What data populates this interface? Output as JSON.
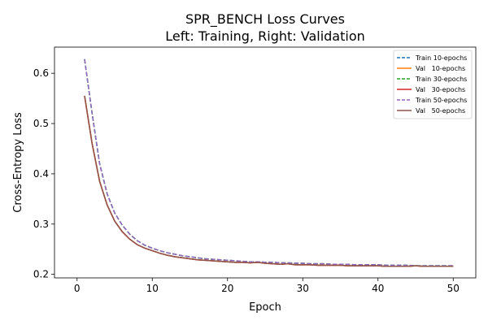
{
  "chart_data": {
    "type": "line",
    "title": "SPR_BENCH Loss Curves",
    "subtitle": "Left: Training, Right: Validation",
    "xlabel": "Epoch",
    "ylabel": "Cross-Entropy Loss",
    "xlim": [
      -3,
      53
    ],
    "ylim": [
      0.193,
      0.652
    ],
    "xticks": [
      0,
      10,
      20,
      30,
      40,
      50
    ],
    "yticks": [
      0.2,
      0.3,
      0.4,
      0.5,
      0.6
    ],
    "grid": false,
    "legend_position": "top-right",
    "x": [
      1,
      2,
      3,
      4,
      5,
      6,
      7,
      8,
      9,
      10,
      11,
      12,
      13,
      14,
      15,
      16,
      17,
      18,
      19,
      20,
      21,
      22,
      23,
      24,
      25,
      26,
      27,
      28,
      29,
      30,
      31,
      32,
      33,
      34,
      35,
      36,
      37,
      38,
      39,
      40,
      41,
      42,
      43,
      44,
      45,
      46,
      47,
      48,
      49,
      50
    ],
    "series": [
      {
        "name": "Train 10-epochs",
        "color": "#1f77b4",
        "dash": true,
        "values": [
          0.628,
          0.52,
          0.42,
          0.36,
          0.322,
          0.298,
          0.28,
          0.267,
          0.258,
          0.252,
          0.247,
          0.243,
          0.24,
          0.237,
          0.235,
          0.233,
          0.231,
          0.23,
          0.229,
          0.228,
          0.227,
          0.226,
          0.225,
          0.225,
          0.224,
          0.224,
          0.223,
          0.223,
          0.222,
          0.222,
          0.221,
          0.221,
          0.221,
          0.22,
          0.22,
          0.22,
          0.219,
          0.219,
          0.219,
          0.219,
          0.218,
          0.218,
          0.218,
          0.218,
          0.217,
          0.217,
          0.217,
          0.217,
          0.217,
          0.217
        ]
      },
      {
        "name": "Val   10-epochs",
        "color": "#ff7f0e",
        "dash": false,
        "values": [
          0.555,
          0.46,
          0.385,
          0.338,
          0.306,
          0.285,
          0.27,
          0.259,
          0.252,
          0.247,
          0.242,
          0.238,
          0.235,
          0.233,
          0.231,
          0.229,
          0.228,
          0.227,
          0.226,
          0.225,
          0.224,
          0.224,
          0.223,
          0.224,
          0.222,
          0.221,
          0.22,
          0.221,
          0.219,
          0.219,
          0.219,
          0.218,
          0.218,
          0.218,
          0.218,
          0.217,
          0.217,
          0.217,
          0.217,
          0.217,
          0.216,
          0.216,
          0.216,
          0.216,
          0.217,
          0.216,
          0.216,
          0.216,
          0.216,
          0.216
        ]
      },
      {
        "name": "Train 30-epochs",
        "color": "#2ca02c",
        "dash": true,
        "values": [
          0.628,
          0.52,
          0.42,
          0.36,
          0.322,
          0.298,
          0.28,
          0.267,
          0.258,
          0.252,
          0.247,
          0.243,
          0.24,
          0.237,
          0.235,
          0.233,
          0.231,
          0.23,
          0.229,
          0.228,
          0.227,
          0.226,
          0.225,
          0.225,
          0.224,
          0.224,
          0.223,
          0.223,
          0.222,
          0.222,
          0.221,
          0.221,
          0.221,
          0.22,
          0.22,
          0.22,
          0.219,
          0.219,
          0.219,
          0.219,
          0.218,
          0.218,
          0.218,
          0.218,
          0.217,
          0.217,
          0.217,
          0.217,
          0.217,
          0.217
        ]
      },
      {
        "name": "Val   30-epochs",
        "color": "#d62728",
        "dash": false,
        "values": [
          0.555,
          0.46,
          0.385,
          0.338,
          0.306,
          0.285,
          0.27,
          0.259,
          0.252,
          0.247,
          0.242,
          0.238,
          0.235,
          0.233,
          0.231,
          0.229,
          0.228,
          0.227,
          0.226,
          0.225,
          0.224,
          0.224,
          0.223,
          0.224,
          0.222,
          0.221,
          0.22,
          0.221,
          0.219,
          0.219,
          0.219,
          0.218,
          0.218,
          0.218,
          0.218,
          0.217,
          0.217,
          0.217,
          0.217,
          0.217,
          0.216,
          0.216,
          0.216,
          0.216,
          0.217,
          0.216,
          0.216,
          0.216,
          0.216,
          0.216
        ]
      },
      {
        "name": "Train 50-epochs",
        "color": "#9467bd",
        "dash": true,
        "values": [
          0.628,
          0.52,
          0.42,
          0.36,
          0.322,
          0.298,
          0.28,
          0.267,
          0.258,
          0.252,
          0.247,
          0.243,
          0.24,
          0.237,
          0.235,
          0.233,
          0.231,
          0.23,
          0.229,
          0.228,
          0.227,
          0.226,
          0.225,
          0.225,
          0.224,
          0.224,
          0.223,
          0.223,
          0.222,
          0.222,
          0.221,
          0.221,
          0.221,
          0.22,
          0.22,
          0.22,
          0.219,
          0.219,
          0.219,
          0.219,
          0.218,
          0.218,
          0.218,
          0.218,
          0.217,
          0.217,
          0.217,
          0.217,
          0.217,
          0.217
        ]
      },
      {
        "name": "Val   50-epochs",
        "color": "#8c564b",
        "dash": false,
        "values": [
          0.555,
          0.46,
          0.385,
          0.338,
          0.306,
          0.285,
          0.27,
          0.259,
          0.252,
          0.247,
          0.242,
          0.238,
          0.235,
          0.233,
          0.231,
          0.229,
          0.228,
          0.227,
          0.226,
          0.225,
          0.224,
          0.224,
          0.223,
          0.224,
          0.222,
          0.221,
          0.22,
          0.221,
          0.219,
          0.219,
          0.219,
          0.218,
          0.218,
          0.218,
          0.218,
          0.217,
          0.217,
          0.217,
          0.217,
          0.217,
          0.216,
          0.216,
          0.216,
          0.216,
          0.217,
          0.216,
          0.216,
          0.216,
          0.216,
          0.216
        ]
      }
    ]
  }
}
